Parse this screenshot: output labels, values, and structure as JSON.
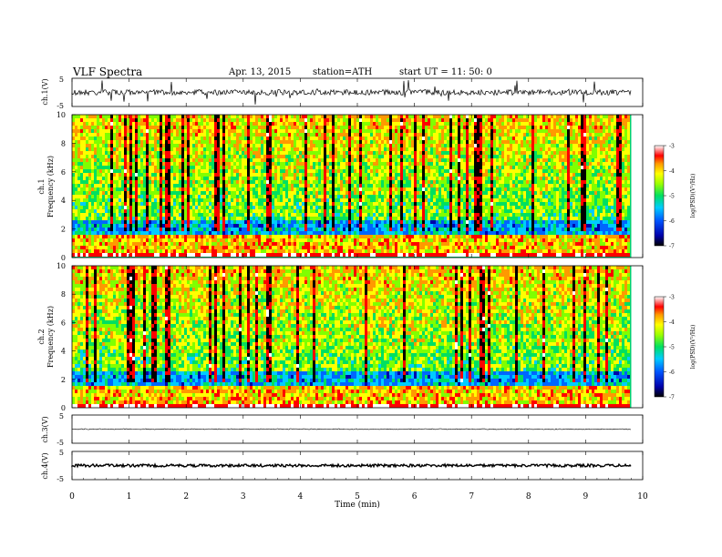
{
  "header": {
    "title": "VLF  Spectra",
    "date": "Apr. 13, 2015",
    "station": "station=ATH",
    "start_ut": "start  UT  =    11: 50: 0"
  },
  "colors": {
    "colormap": [
      "#000000",
      "#0000aa",
      "#0066ff",
      "#00ccff",
      "#00e060",
      "#80ff00",
      "#ffff00",
      "#ff9900",
      "#ff0000",
      "#ffffff"
    ]
  },
  "chart_data": [
    {
      "type": "line",
      "name": "ch1-waveform",
      "ylabel": "ch.1(V)",
      "ylim": [
        -5,
        5
      ],
      "y_ticks": [
        "5",
        "-5"
      ],
      "baseline": 0,
      "notes": "dense noisy waveform with spikes"
    },
    {
      "type": "heatmap",
      "name": "ch1-spectrogram",
      "ylabel_channel": "ch.1",
      "ylabel": "Frequency  (kHz)",
      "ylim": [
        0,
        10
      ],
      "y_ticks": [
        "0",
        "2",
        "4",
        "6",
        "8",
        "10"
      ],
      "colorbar": {
        "label": "log(PSD)(V²/Hz)",
        "range": [
          -7,
          -3
        ],
        "ticks": [
          "-3",
          "-4",
          "-5",
          "-6",
          "-7"
        ]
      }
    },
    {
      "type": "heatmap",
      "name": "ch2-spectrogram",
      "ylabel_channel": "ch.2",
      "ylabel": "Frequency  (kHz)",
      "ylim": [
        0,
        10
      ],
      "y_ticks": [
        "0",
        "2",
        "4",
        "6",
        "8",
        "10"
      ],
      "colorbar": {
        "label": "log(PSD)(V²/Hz)",
        "range": [
          -7,
          -3
        ],
        "ticks": [
          "-3",
          "-4",
          "-5",
          "-6",
          "-7"
        ]
      }
    },
    {
      "type": "line",
      "name": "ch3-waveform",
      "ylabel": "ch.3(V)",
      "ylim": [
        -5,
        5
      ],
      "y_ticks": [
        "5",
        "-5"
      ],
      "baseline": 0
    },
    {
      "type": "line",
      "name": "ch4-waveform",
      "ylabel": "ch.4(V)",
      "ylim": [
        -5,
        5
      ],
      "y_ticks": [
        "5",
        "-5"
      ],
      "baseline": 0
    }
  ],
  "x_axis": {
    "xlabel": "Time  (min)",
    "xlim": [
      0,
      10
    ],
    "ticks": [
      "0",
      "1",
      "2",
      "3",
      "4",
      "5",
      "6",
      "7",
      "8",
      "9",
      "10"
    ]
  }
}
